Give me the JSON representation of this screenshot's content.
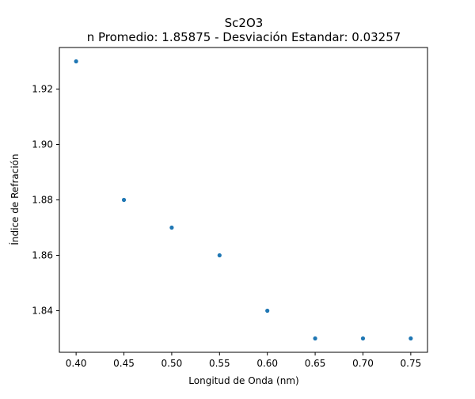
{
  "chart_data": {
    "type": "scatter",
    "title": "Sc2O3",
    "subtitle": "n Promedio: 1.85875 - Desviación Estandar: 0.03257",
    "xlabel": "Longitud de Onda (nm)",
    "ylabel": "Índice de Refración",
    "x": [
      0.4,
      0.45,
      0.5,
      0.55,
      0.6,
      0.65,
      0.7,
      0.75
    ],
    "y": [
      1.93,
      1.88,
      1.87,
      1.86,
      1.84,
      1.83,
      1.83,
      1.83
    ],
    "xlim": [
      0.3825,
      0.7675
    ],
    "ylim": [
      1.825,
      1.935
    ],
    "xticks": [
      "0.40",
      "0.45",
      "0.50",
      "0.55",
      "0.60",
      "0.65",
      "0.70",
      "0.75"
    ],
    "yticks": [
      "1.84",
      "1.86",
      "1.88",
      "1.90",
      "1.92"
    ],
    "grid": false,
    "marker_color": "#1f77b4"
  }
}
